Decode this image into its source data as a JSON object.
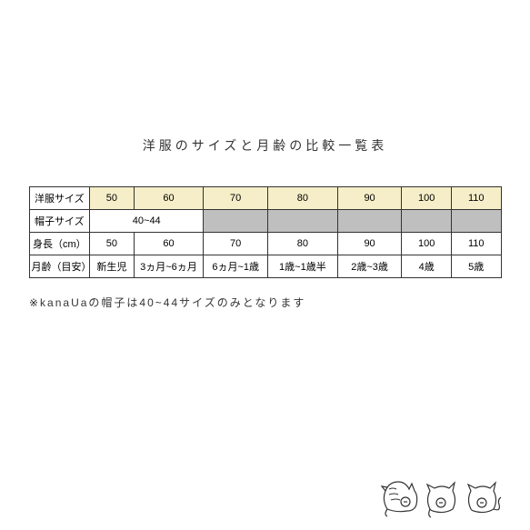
{
  "title": "洋服のサイズと月齢の比較一覧表",
  "table": {
    "header_color": "#f5eec8",
    "gray_color": "#bfbfbf",
    "border_color": "#333333",
    "rows": {
      "clothes_size": {
        "label": "洋服サイズ",
        "values": [
          "50",
          "60",
          "70",
          "80",
          "90",
          "100",
          "110"
        ]
      },
      "hat_size": {
        "label": "帽子サイズ",
        "span_value": "40~44"
      },
      "height": {
        "label": "身長（cm）",
        "values": [
          "50",
          "60",
          "70",
          "80",
          "90",
          "100",
          "110"
        ]
      },
      "age": {
        "label": "月齢（目安）",
        "values": [
          "新生児",
          "3ヵ月~6ヵ月",
          "6ヵ月~1歳",
          "1歳~1歳半",
          "2歳~3歳",
          "4歳",
          "5歳"
        ]
      }
    }
  },
  "note": "※kanaUaの帽子は40~44サイズのみとなります",
  "col_widths": [
    "66px",
    "48px",
    "76px",
    "70px",
    "76px",
    "70px",
    "54px",
    "54px"
  ]
}
